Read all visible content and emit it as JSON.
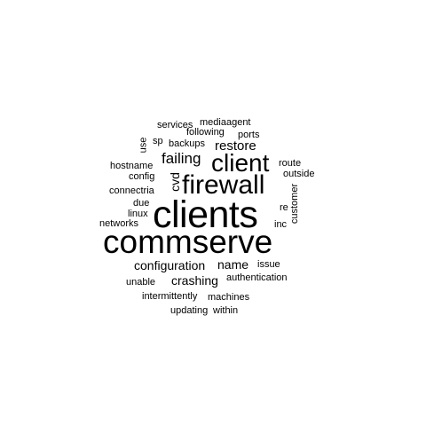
{
  "words": {
    "commserve": "commserve",
    "clients": "clients",
    "firewall": "firewall",
    "client": "client",
    "failing": "failing",
    "restore": "restore",
    "backups": "backups",
    "sp": "sp",
    "following": "following",
    "ports": "ports",
    "services": "services",
    "mediaagent": "mediaagent",
    "use": "use",
    "cvd": "cvd",
    "hostname": "hostname",
    "config": "config",
    "connectria": "connectria",
    "due": "due",
    "linux": "linux",
    "networks": "networks",
    "route": "route",
    "outside": "outside",
    "customer": "customer",
    "re": "re",
    "inc": "inc",
    "configuration": "configuration",
    "name": "name",
    "issue": "issue",
    "crashing": "crashing",
    "authentication": "authentication",
    "unable": "unable",
    "intermittently": "intermittently",
    "machines": "machines",
    "updating": "updating",
    "within": "within"
  },
  "colors": {
    "text": "#000000",
    "background": "#ffffff"
  }
}
